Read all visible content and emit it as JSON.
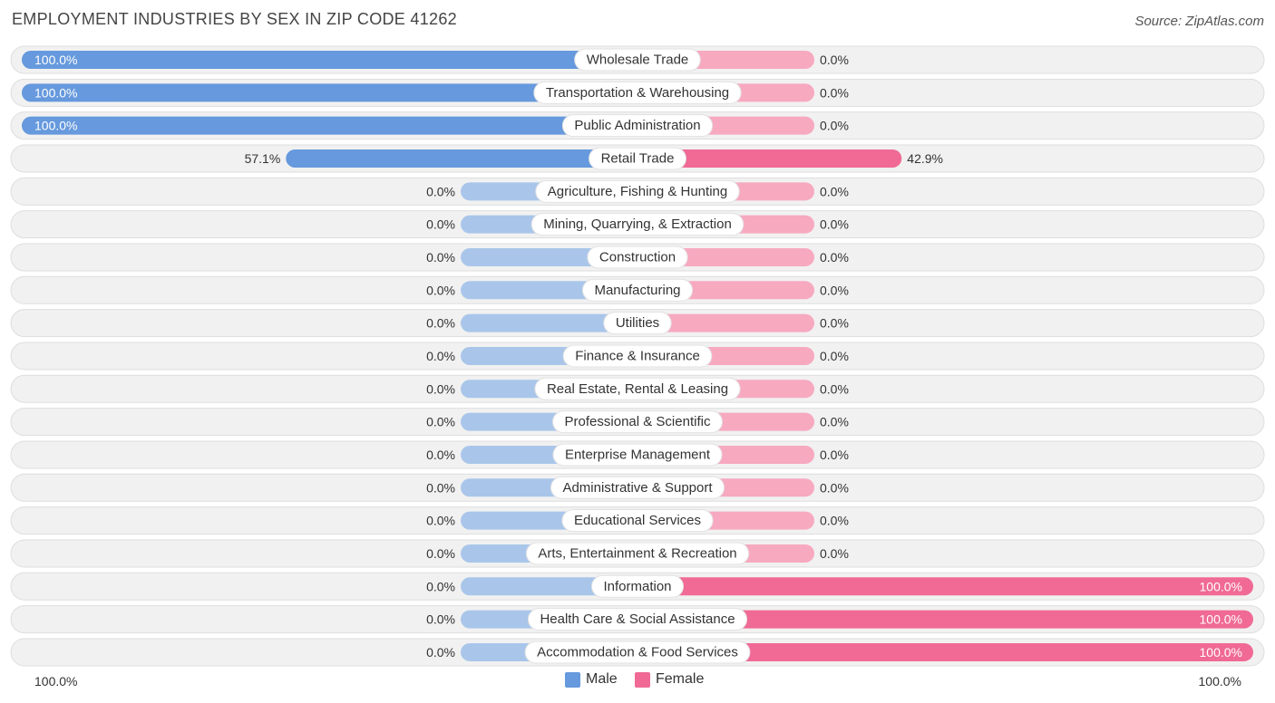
{
  "header": {
    "title": "EMPLOYMENT INDUSTRIES BY SEX IN ZIP CODE 41262",
    "source": "Source: ZipAtlas.com"
  },
  "colors": {
    "male_strong": "#6699dd",
    "male_light": "#a9c6ea",
    "female_strong": "#f06a95",
    "female_light": "#f7a9c0",
    "row_bg": "#f1f1f1",
    "row_border": "#dedede"
  },
  "legend": {
    "male_label": "Male",
    "female_label": "Female"
  },
  "axis": {
    "left_label": "100.0%",
    "right_label": "100.0%"
  },
  "chart_data": {
    "type": "bar",
    "orientation": "horizontal-diverging",
    "title": "EMPLOYMENT INDUSTRIES BY SEX IN ZIP CODE 41262",
    "xlim": [
      -100,
      100
    ],
    "categories": [
      "Wholesale Trade",
      "Transportation & Warehousing",
      "Public Administration",
      "Retail Trade",
      "Agriculture, Fishing & Hunting",
      "Mining, Quarrying, & Extraction",
      "Construction",
      "Manufacturing",
      "Utilities",
      "Finance & Insurance",
      "Real Estate, Rental & Leasing",
      "Professional & Scientific",
      "Enterprise Management",
      "Administrative & Support",
      "Educational Services",
      "Arts, Entertainment & Recreation",
      "Information",
      "Health Care & Social Assistance",
      "Accommodation & Food Services"
    ],
    "series": [
      {
        "name": "Male",
        "values": [
          100.0,
          100.0,
          100.0,
          57.1,
          0.0,
          0.0,
          0.0,
          0.0,
          0.0,
          0.0,
          0.0,
          0.0,
          0.0,
          0.0,
          0.0,
          0.0,
          0.0,
          0.0,
          0.0
        ],
        "labels": [
          "100.0%",
          "100.0%",
          "100.0%",
          "57.1%",
          "0.0%",
          "0.0%",
          "0.0%",
          "0.0%",
          "0.0%",
          "0.0%",
          "0.0%",
          "0.0%",
          "0.0%",
          "0.0%",
          "0.0%",
          "0.0%",
          "0.0%",
          "0.0%",
          "0.0%"
        ]
      },
      {
        "name": "Female",
        "values": [
          0.0,
          0.0,
          0.0,
          42.9,
          0.0,
          0.0,
          0.0,
          0.0,
          0.0,
          0.0,
          0.0,
          0.0,
          0.0,
          0.0,
          0.0,
          0.0,
          100.0,
          100.0,
          100.0
        ],
        "labels": [
          "0.0%",
          "0.0%",
          "0.0%",
          "42.9%",
          "0.0%",
          "0.0%",
          "0.0%",
          "0.0%",
          "0.0%",
          "0.0%",
          "0.0%",
          "0.0%",
          "0.0%",
          "0.0%",
          "0.0%",
          "0.0%",
          "100.0%",
          "100.0%",
          "100.0%"
        ]
      }
    ],
    "legend_position": "bottom-center",
    "grid": false
  }
}
